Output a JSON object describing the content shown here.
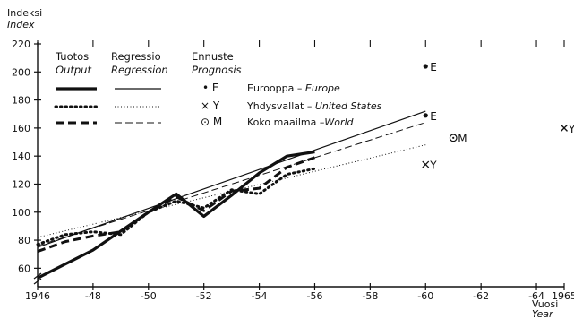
{
  "chart_data": {
    "type": "line",
    "ylabel": "Indeksi",
    "ylabel_en": "Index",
    "xlabel": "Vuosi",
    "xlabel_en": "Year",
    "ylim": [
      50,
      220
    ],
    "xlim": [
      1946,
      1965
    ],
    "y_ticks": [
      60,
      80,
      100,
      120,
      140,
      160,
      180,
      200,
      220
    ],
    "x_ticks": [
      {
        "v": 1946,
        "label": "1946"
      },
      {
        "v": 1948,
        "label": "-48"
      },
      {
        "v": 1950,
        "label": "-50"
      },
      {
        "v": 1952,
        "label": "-52"
      },
      {
        "v": 1954,
        "label": "-54"
      },
      {
        "v": 1956,
        "label": "-56"
      },
      {
        "v": 1958,
        "label": "-58"
      },
      {
        "v": 1960,
        "label": "-60"
      },
      {
        "v": 1962,
        "label": "-62"
      },
      {
        "v": 1964,
        "label": "-64"
      },
      {
        "v": 1965,
        "label": "1965"
      }
    ],
    "legend_headers": [
      {
        "fi": "Tuotos",
        "en": "Output"
      },
      {
        "fi": "Regressio",
        "en": "Regression"
      },
      {
        "fi": "Ennuste",
        "en": "Prognosis"
      }
    ],
    "legend_rows": [
      {
        "marker": "• E",
        "fi": "Eurooppa",
        "en": "Europe"
      },
      {
        "marker": "× Y",
        "fi": "Yhdysvallat",
        "en": "United States"
      },
      {
        "marker": "⊙ M",
        "fi": "Koko maailma",
        "en": "World"
      }
    ],
    "series": [
      {
        "name": "Eurooppa — Europe",
        "output": {
          "x": [
            1946,
            1948,
            1950,
            1951,
            1952,
            1953,
            1954,
            1955,
            1956
          ],
          "y": [
            53,
            73,
            100,
            113,
            97,
            112,
            128,
            140,
            143
          ]
        },
        "regression": {
          "x": [
            1946,
            1960
          ],
          "y": [
            75,
            172
          ]
        },
        "prognosis": {
          "x": 1960,
          "y": 204,
          "label": "E"
        },
        "prognosis_2": {
          "x": 1960,
          "y": 169,
          "label": "E"
        }
      },
      {
        "name": "Yhdysvallat — United States",
        "output": {
          "x": [
            1946,
            1947,
            1948,
            1949,
            1950,
            1951,
            1952,
            1953,
            1954,
            1955,
            1956
          ],
          "y": [
            77,
            84,
            86,
            84,
            100,
            108,
            103,
            116,
            113,
            127,
            131
          ]
        },
        "regression": {
          "x": [
            1946,
            1960
          ],
          "y": [
            82,
            148
          ]
        },
        "prognosis": {
          "x": 1960,
          "y": 134,
          "label": "Y"
        },
        "prognosis_2": {
          "x": 1965,
          "y": 160,
          "label": "Y"
        }
      },
      {
        "name": "Koko maailma — World",
        "output": {
          "x": [
            1946,
            1947,
            1948,
            1949,
            1950,
            1951,
            1952,
            1953,
            1954,
            1955,
            1956
          ],
          "y": [
            72,
            79,
            83,
            86,
            100,
            111,
            101,
            115,
            117,
            132,
            139
          ]
        },
        "regression": {
          "x": [
            1946,
            1960
          ],
          "y": [
            76,
            164
          ]
        },
        "prognosis": {
          "x": 1961,
          "y": 153,
          "label": "M"
        }
      }
    ]
  }
}
